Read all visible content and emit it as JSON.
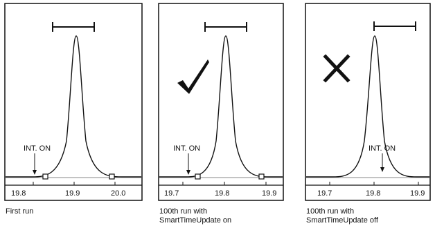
{
  "panels": [
    {
      "caption_lines": [
        "First run"
      ],
      "annotation": "INT. ON",
      "ticks": [
        "19.8",
        "19.9",
        "20.0"
      ],
      "mark": "none",
      "int_markers": "squares"
    },
    {
      "caption_lines": [
        "100th run with",
        "SmartTimeUpdate on"
      ],
      "annotation": "INT. ON",
      "ticks": [
        "19.7",
        "19.8",
        "19.9"
      ],
      "mark": "checkmark-icon",
      "int_markers": "squares"
    },
    {
      "caption_lines": [
        "100th run with",
        "SmartTimeUpdate off"
      ],
      "annotation": "INT. ON",
      "ticks": [
        "19.7",
        "19.8",
        "19.9"
      ],
      "mark": "cross-icon",
      "int_markers": "none"
    }
  ]
}
